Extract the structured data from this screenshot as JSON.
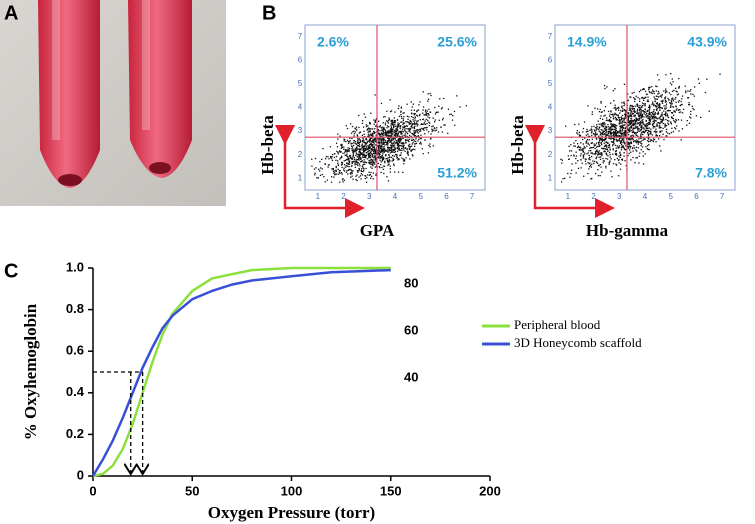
{
  "panels": {
    "a": {
      "label": "A"
    },
    "b": {
      "label": "B",
      "ticks": [
        "1",
        "2",
        "3",
        "4",
        "5",
        "6",
        "7"
      ],
      "plots": [
        {
          "x_label": "GPA",
          "y_label": "Hb-beta",
          "quadrants": [
            "2.6%",
            "25.6%",
            "51.2%"
          ]
        },
        {
          "x_label": "Hb-gamma",
          "y_label": "Hb-beta",
          "quadrants": [
            "14.9%",
            "43.9%",
            "7.8%"
          ]
        }
      ]
    }
  },
  "chart_data": {
    "type": "line",
    "label": "C",
    "x_label": "Oxygen Pressure (torr)",
    "y_label": "% Oxyhemoglobin",
    "x": [
      0,
      5,
      10,
      15,
      20,
      25,
      30,
      35,
      40,
      50,
      60,
      70,
      80,
      100,
      120,
      150
    ],
    "series": [
      {
        "name": "Peripheral blood",
        "color": "#8be03c",
        "values": [
          0,
          0.01,
          0.05,
          0.13,
          0.25,
          0.4,
          0.55,
          0.68,
          0.78,
          0.89,
          0.95,
          0.97,
          0.99,
          1.0,
          1.0,
          1.0
        ]
      },
      {
        "name": "3D Honeycomb scaffold",
        "color": "#3a4fd8",
        "values": [
          0,
          0.08,
          0.17,
          0.28,
          0.4,
          0.52,
          0.62,
          0.71,
          0.77,
          0.85,
          0.89,
          0.92,
          0.94,
          0.96,
          0.98,
          0.99
        ]
      }
    ],
    "xlim": [
      0,
      200
    ],
    "xticks": [
      0,
      50,
      100,
      150,
      200
    ],
    "ylim": [
      0,
      1
    ],
    "yticks": [
      0,
      0.2,
      0.4,
      0.6,
      0.8,
      {
        "value": 1,
        "label": "1.0"
      }
    ],
    "side_labels": [
      "80",
      "60",
      "40"
    ],
    "reference": {
      "y": 0.5,
      "x": [
        19,
        25
      ]
    }
  }
}
